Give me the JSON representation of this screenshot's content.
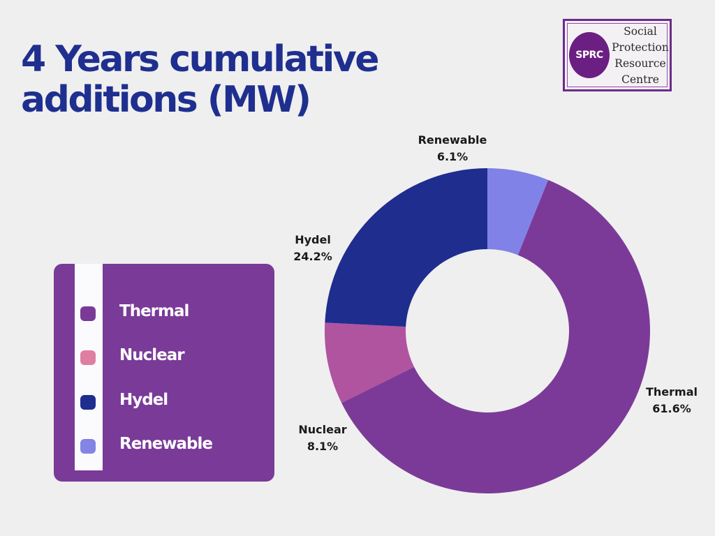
{
  "title": {
    "line1": "4 Years cumulative",
    "line2": "additions (MW)"
  },
  "logo": {
    "abbr": "SPRC",
    "lines": [
      "Social",
      "Protection",
      "Resource",
      "Centre"
    ]
  },
  "legend": {
    "items": [
      {
        "label": "Thermal",
        "color": "#7b3a98"
      },
      {
        "label": "Nuclear",
        "color": "#e07ea2"
      },
      {
        "label": "Hydel",
        "color": "#1f2d8f"
      },
      {
        "label": "Renewable",
        "color": "#8284e6"
      }
    ]
  },
  "chart_data": {
    "type": "pie",
    "variant": "donut",
    "categories": [
      "Renewable",
      "Thermal",
      "Nuclear",
      "Hydel"
    ],
    "values": [
      6.1,
      61.6,
      8.1,
      24.2
    ],
    "labels": [
      "6.1%",
      "61.6%",
      "8.1%",
      "24.2%"
    ],
    "colors": [
      "#8082e8",
      "#7b3a98",
      "#b0549f",
      "#1f2d8f"
    ],
    "unit": "%",
    "title": "4 Years cumulative additions (MW)"
  }
}
